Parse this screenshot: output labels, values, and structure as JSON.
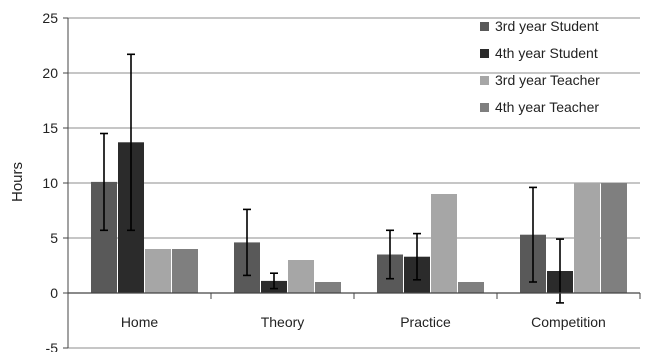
{
  "chart_data": {
    "type": "bar",
    "title": "",
    "xlabel": "",
    "ylabel": "Hours",
    "ylim": [
      -5,
      25
    ],
    "yticks": [
      -5,
      0,
      5,
      10,
      15,
      20,
      25
    ],
    "grid": true,
    "legend_position": "top-right",
    "categories": [
      "Home",
      "Theory",
      "Practice",
      "Competition"
    ],
    "series": [
      {
        "name": "3rd year Student",
        "color": "#595959",
        "values": [
          10.1,
          4.6,
          3.5,
          5.3
        ],
        "error": [
          4.4,
          3.0,
          2.2,
          4.3
        ]
      },
      {
        "name": "4th year Student",
        "color": "#2b2b2b",
        "values": [
          13.7,
          1.1,
          3.3,
          2.0
        ],
        "error": [
          8.0,
          0.7,
          2.1,
          2.9
        ]
      },
      {
        "name": "3rd year Teacher",
        "color": "#a6a6a6",
        "values": [
          4.0,
          3.0,
          9.0,
          10.0
        ],
        "error": null
      },
      {
        "name": "4th year Teacher",
        "color": "#7f7f7f",
        "values": [
          4.0,
          1.0,
          1.0,
          10.0
        ],
        "error": null
      }
    ]
  }
}
